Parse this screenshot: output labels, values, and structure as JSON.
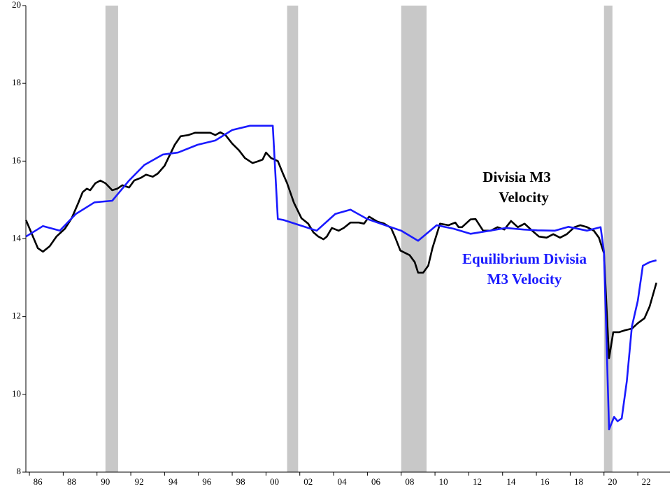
{
  "chart_data": {
    "type": "line",
    "xlim": [
      1985.75,
      2023.9
    ],
    "ylim": [
      8,
      20
    ],
    "yticks": [
      8,
      10,
      12,
      14,
      16,
      18,
      20
    ],
    "xticks": [
      {
        "value": 1986,
        "label": "86"
      },
      {
        "value": 1988,
        "label": "88"
      },
      {
        "value": 1990,
        "label": "90"
      },
      {
        "value": 1992,
        "label": "92"
      },
      {
        "value": 1994,
        "label": "94"
      },
      {
        "value": 1996,
        "label": "96"
      },
      {
        "value": 1998,
        "label": "98"
      },
      {
        "value": 2000,
        "label": "00"
      },
      {
        "value": 2002,
        "label": "02"
      },
      {
        "value": 2004,
        "label": "04"
      },
      {
        "value": 2006,
        "label": "06"
      },
      {
        "value": 2008,
        "label": "08"
      },
      {
        "value": 2010,
        "label": "10"
      },
      {
        "value": 2012,
        "label": "12"
      },
      {
        "value": 2014,
        "label": "14"
      },
      {
        "value": 2016,
        "label": "16"
      },
      {
        "value": 2018,
        "label": "18"
      },
      {
        "value": 2020,
        "label": "20"
      },
      {
        "value": 2022,
        "label": "22"
      }
    ],
    "recessions": [
      [
        1990.5,
        1991.25
      ],
      [
        2001.25,
        2001.9
      ],
      [
        2008.0,
        2009.5
      ],
      [
        2020.0,
        2020.5
      ]
    ],
    "recession_color": "#c8c8c8",
    "series": [
      {
        "name": [
          "Divisia M3",
          "Velocity"
        ],
        "color": "#000000",
        "x": [
          1985.8,
          1986.5,
          1986.8,
          1987.2,
          1987.6,
          1988.1,
          1988.5,
          1988.9,
          1989.15,
          1989.4,
          1989.6,
          1989.9,
          1990.2,
          1990.5,
          1990.9,
          1991.2,
          1991.5,
          1991.9,
          1992.2,
          1992.6,
          1992.9,
          1993.3,
          1993.6,
          1994.0,
          1994.3,
          1994.6,
          1994.95,
          1995.4,
          1995.8,
          1996.2,
          1996.7,
          1997.0,
          1997.3,
          1997.6,
          1998.0,
          1998.4,
          1998.75,
          1999.2,
          1999.5,
          1999.8,
          2000.0,
          2000.3,
          2000.7,
          2001.0,
          2001.25,
          2001.65,
          2002.1,
          2002.5,
          2002.8,
          2003.1,
          2003.4,
          2003.6,
          2003.9,
          2004.3,
          2004.6,
          2005.0,
          2005.5,
          2005.8,
          2006.1,
          2006.6,
          2007.0,
          2007.4,
          2007.65,
          2007.95,
          2008.5,
          2008.8,
          2009.0,
          2009.3,
          2009.6,
          2009.85,
          2010.3,
          2010.8,
          2011.2,
          2011.4,
          2011.6,
          2012.1,
          2012.4,
          2012.85,
          2013.3,
          2013.7,
          2014.1,
          2014.5,
          2014.9,
          2015.3,
          2015.75,
          2016.15,
          2016.6,
          2017.0,
          2017.4,
          2017.8,
          2018.25,
          2018.6,
          2019.0,
          2019.4,
          2019.7,
          2020.0,
          2020.15,
          2020.3,
          2020.55,
          2020.9,
          2021.25,
          2021.65,
          2022.0,
          2022.4,
          2022.7,
          2023.1
        ],
        "values": [
          14.48,
          13.76,
          13.67,
          13.81,
          14.06,
          14.26,
          14.53,
          14.93,
          15.2,
          15.29,
          15.25,
          15.43,
          15.5,
          15.43,
          15.25,
          15.29,
          15.38,
          15.32,
          15.5,
          15.57,
          15.65,
          15.6,
          15.68,
          15.88,
          16.15,
          16.42,
          16.64,
          16.67,
          16.73,
          16.73,
          16.73,
          16.67,
          16.74,
          16.67,
          16.45,
          16.28,
          16.08,
          15.95,
          15.99,
          16.04,
          16.22,
          16.08,
          16.0,
          15.68,
          15.43,
          14.93,
          14.53,
          14.39,
          14.17,
          14.06,
          13.99,
          14.06,
          14.28,
          14.21,
          14.28,
          14.42,
          14.42,
          14.39,
          14.57,
          14.44,
          14.39,
          14.28,
          14.03,
          13.7,
          13.58,
          13.4,
          13.13,
          13.13,
          13.31,
          13.76,
          14.39,
          14.35,
          14.42,
          14.3,
          14.3,
          14.5,
          14.51,
          14.21,
          14.21,
          14.3,
          14.24,
          14.46,
          14.3,
          14.39,
          14.21,
          14.06,
          14.03,
          14.12,
          14.03,
          14.12,
          14.3,
          14.35,
          14.3,
          14.21,
          14.03,
          13.63,
          12.23,
          10.93,
          11.6,
          11.6,
          11.65,
          11.69,
          11.83,
          11.96,
          12.26,
          12.87
        ]
      },
      {
        "name": [
          "Equilibrium Divisia",
          "M3 Velocity"
        ],
        "color": "#1a1aff",
        "x": [
          1985.8,
          1986.8,
          1987.8,
          1988.75,
          1989.85,
          1990.9,
          1991.9,
          1992.8,
          1993.9,
          1994.8,
          1995.95,
          1997.0,
          1998.0,
          1999.05,
          1999.9,
          2000.4,
          2000.7,
          2001.0,
          2002.0,
          2003.0,
          2004.1,
          2005.0,
          2006.0,
          2007.05,
          2008.0,
          2009.0,
          2010.1,
          2011.1,
          2012.1,
          2013.25,
          2014.2,
          2015.25,
          2016.05,
          2017.1,
          2017.9,
          2019.0,
          2019.8,
          2020.0,
          2020.3,
          2020.6,
          2020.8,
          2021.05,
          2021.35,
          2021.65,
          2022.0,
          2022.3,
          2022.7,
          2023.1
        ],
        "values": [
          14.06,
          14.33,
          14.21,
          14.64,
          14.94,
          14.98,
          15.5,
          15.9,
          16.17,
          16.22,
          16.42,
          16.53,
          16.8,
          16.91,
          16.91,
          16.91,
          14.51,
          14.49,
          14.35,
          14.21,
          14.64,
          14.75,
          14.51,
          14.35,
          14.21,
          13.95,
          14.35,
          14.26,
          14.13,
          14.21,
          14.28,
          14.24,
          14.22,
          14.21,
          14.31,
          14.21,
          14.3,
          13.67,
          9.1,
          9.42,
          9.31,
          9.38,
          10.34,
          11.74,
          12.41,
          13.31,
          13.4,
          13.45
        ]
      }
    ]
  }
}
